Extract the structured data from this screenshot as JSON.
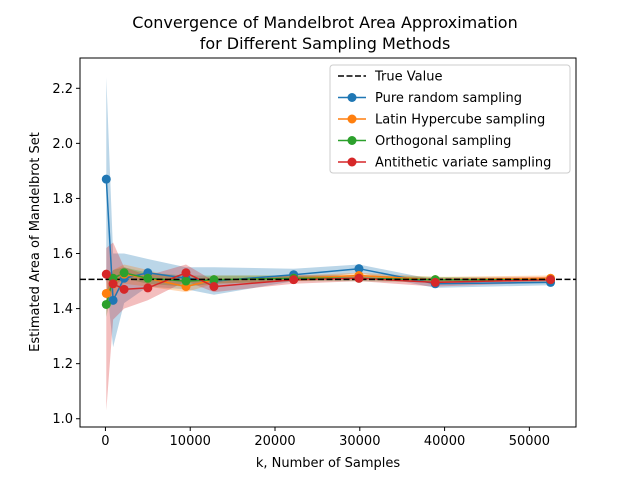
{
  "chart_data": {
    "type": "line",
    "title": [
      "Convergence of Mandelbrot Area Approximation",
      "for Different Sampling Methods"
    ],
    "xlabel": "k, Number of Samples",
    "ylabel": "Estimated Area of Mandelbrot Set",
    "xlim": [
      -3000,
      55500
    ],
    "ylim": [
      0.97,
      2.31
    ],
    "xticks": [
      0,
      10000,
      20000,
      30000,
      40000,
      50000
    ],
    "yticks": [
      1.0,
      1.2,
      1.4,
      1.6,
      1.8,
      2.0,
      2.2
    ],
    "grid": false,
    "legend_position": "top-right",
    "true_value": {
      "name": "True Value",
      "value": 1.506,
      "color": "#000000"
    },
    "x": [
      100,
      900,
      2200,
      5000,
      9500,
      12800,
      22200,
      29900,
      38900,
      52500
    ],
    "series": [
      {
        "name": "Pure random sampling",
        "color": "#1f77b4",
        "values": [
          1.87,
          1.43,
          1.51,
          1.53,
          1.51,
          1.5,
          1.523,
          1.545,
          1.49,
          1.495
        ],
        "band": [
          [
            1.5,
            2.24
          ],
          [
            1.26,
            1.6
          ],
          [
            1.42,
            1.6
          ],
          [
            1.48,
            1.58
          ],
          [
            1.47,
            1.55
          ],
          [
            1.45,
            1.55
          ],
          [
            1.5,
            1.545
          ],
          [
            1.53,
            1.56
          ],
          [
            1.475,
            1.505
          ],
          [
            1.485,
            1.505
          ]
        ]
      },
      {
        "name": "Latin Hypercube sampling",
        "color": "#ff7f0e",
        "values": [
          1.455,
          1.49,
          1.525,
          1.51,
          1.48,
          1.505,
          1.51,
          1.52,
          1.505,
          1.51
        ],
        "band": [
          [
            1.4,
            1.51
          ],
          [
            1.44,
            1.54
          ],
          [
            1.49,
            1.56
          ],
          [
            1.48,
            1.54
          ],
          [
            1.46,
            1.5
          ],
          [
            1.49,
            1.52
          ],
          [
            1.5,
            1.52
          ],
          [
            1.51,
            1.53
          ],
          [
            1.495,
            1.515
          ],
          [
            1.5,
            1.52
          ]
        ]
      },
      {
        "name": "Orthogonal sampling",
        "color": "#2ca02c",
        "values": [
          1.415,
          1.51,
          1.53,
          1.51,
          1.5,
          1.505,
          1.51,
          1.51,
          1.505,
          1.505
        ],
        "band": [
          [
            1.37,
            1.46
          ],
          [
            1.48,
            1.54
          ],
          [
            1.51,
            1.55
          ],
          [
            1.49,
            1.53
          ],
          [
            1.48,
            1.52
          ],
          [
            1.49,
            1.52
          ],
          [
            1.5,
            1.52
          ],
          [
            1.5,
            1.52
          ],
          [
            1.495,
            1.515
          ],
          [
            1.5,
            1.51
          ]
        ]
      },
      {
        "name": "Antithetic variate sampling",
        "color": "#d62728",
        "values": [
          1.525,
          1.49,
          1.47,
          1.475,
          1.53,
          1.48,
          1.505,
          1.51,
          1.495,
          1.505
        ],
        "band": [
          [
            1.03,
            1.62
          ],
          [
            1.36,
            1.64
          ],
          [
            1.4,
            1.55
          ],
          [
            1.43,
            1.52
          ],
          [
            1.5,
            1.56
          ],
          [
            1.46,
            1.5
          ],
          [
            1.49,
            1.52
          ],
          [
            1.5,
            1.52
          ],
          [
            1.48,
            1.51
          ],
          [
            1.495,
            1.515
          ]
        ]
      }
    ]
  }
}
